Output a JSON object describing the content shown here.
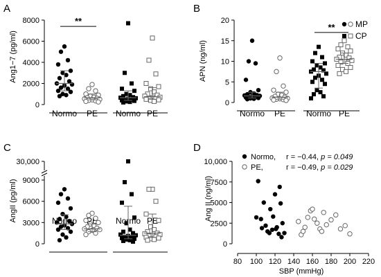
{
  "colors": {
    "ink": "#000000",
    "open_marker": "#666666",
    "summary_line": "#666666"
  },
  "panel_letters": [
    "A",
    "B",
    "C",
    "D"
  ],
  "legend_B": {
    "items": [
      {
        "label": "MP",
        "markers": [
          "filled-circle",
          "open-circle"
        ]
      },
      {
        "label": "CP",
        "markers": [
          "filled-square",
          "open-square"
        ]
      }
    ]
  },
  "legend_D": {
    "items": [
      {
        "label": "Normo,",
        "stat_r": "r = −0.44,",
        "stat_p_name": "p",
        "stat_p_value": "= 0.049",
        "marker": "filled-circle"
      },
      {
        "label": "PE,",
        "stat_r": "r = −0.49,",
        "stat_p_name": "p",
        "stat_p_value": "= 0.029",
        "marker": "open-circle"
      }
    ]
  },
  "chart_data": [
    {
      "panel": "A",
      "type": "scatter",
      "ylabel": "Ang1−7 (pg/ml)",
      "ylim": [
        0,
        8000
      ],
      "yticks": [
        0,
        2000,
        4000,
        6000,
        8000
      ],
      "yticklabels": [
        "0",
        "2000",
        "4000",
        "6000",
        "8000"
      ],
      "categories": [
        "Normo",
        "PE",
        "Normo",
        "PE"
      ],
      "groups": [
        {
          "marker": "filled-circle",
          "values": [
            5500,
            5000,
            4200,
            3800,
            3200,
            3000,
            2800,
            2500,
            2200,
            2000,
            1900,
            1800,
            1600,
            1500,
            1300,
            1200,
            1000,
            900,
            800
          ],
          "median": 2000,
          "q1": 1300,
          "q3": 3200
        },
        {
          "marker": "open-circle",
          "values": [
            1900,
            1500,
            1300,
            1000,
            900,
            800,
            700,
            650,
            600,
            550,
            500,
            450,
            400,
            350,
            300,
            250
          ],
          "median": 650,
          "q1": 450,
          "q3": 1000
        },
        {
          "marker": "filled-square",
          "values": [
            7700,
            3000,
            2000,
            1500,
            1300,
            1000,
            900,
            800,
            700,
            650,
            600,
            550,
            500,
            450,
            400,
            350,
            300,
            250,
            200
          ],
          "median": 650,
          "q1": 400,
          "q3": 1300
        },
        {
          "marker": "open-square",
          "values": [
            6300,
            4200,
            2900,
            2000,
            1700,
            1500,
            1200,
            1000,
            900,
            800,
            700,
            650,
            600,
            550,
            500,
            450,
            400,
            300
          ],
          "median": 750,
          "q1": 500,
          "q3": 1600
        }
      ],
      "significance": [
        {
          "between": [
            0,
            1
          ],
          "label": "**",
          "y": 7400
        }
      ]
    },
    {
      "panel": "B",
      "type": "scatter",
      "ylabel": "APN (ng/ml)",
      "ylim": [
        0,
        20
      ],
      "yticks": [
        0,
        5,
        10,
        15,
        20
      ],
      "yticklabels": [
        "0",
        "5",
        "10",
        "15",
        "20"
      ],
      "categories": [
        "Normo",
        "PE",
        "Normo",
        "PE"
      ],
      "groups": [
        {
          "marker": "filled-circle",
          "values": [
            15,
            10,
            9.5,
            5.5,
            3,
            2.5,
            2.2,
            2,
            1.8,
            1.7,
            1.6,
            1.5,
            1.4,
            1.3,
            1.2,
            1.1,
            1,
            0.9,
            0.8
          ],
          "median": 1.6,
          "q1": 1.1,
          "q3": 2.5
        },
        {
          "marker": "open-circle",
          "values": [
            10.8,
            7.5,
            4,
            3,
            2.5,
            2,
            1.8,
            1.5,
            1.3,
            1.1,
            1,
            0.9,
            0.8,
            0.7,
            0.6,
            0.5
          ],
          "median": 1.3,
          "q1": 0.8,
          "q3": 2.5
        },
        {
          "marker": "filled-square",
          "values": [
            13.5,
            12,
            11,
            10,
            9.5,
            9,
            8.5,
            8,
            7.8,
            7.5,
            7,
            6.5,
            6,
            5.5,
            5,
            4.5,
            3,
            2.5,
            2,
            1.5,
            1
          ],
          "median": 7.5,
          "q1": 3.5,
          "q3": 9.5
        },
        {
          "marker": "open-square",
          "values": [
            15,
            14,
            13.5,
            13,
            12.5,
            12,
            11.5,
            11,
            10.8,
            10.5,
            10.2,
            10,
            9.8,
            9.5,
            9,
            8.5,
            8,
            7.5,
            7
          ],
          "median": 10.5,
          "q1": 9.5,
          "q3": 12
        }
      ],
      "significance": [
        {
          "between": [
            2,
            3
          ],
          "label": "**",
          "y": 17
        }
      ]
    },
    {
      "panel": "C",
      "type": "scatter",
      "ylabel": "AngII (pg/ml)",
      "ylim": [
        0,
        9000
      ],
      "axis_break": {
        "below": 9000,
        "upper_value": 30000,
        "upper_label": "30,000"
      },
      "yticks": [
        0,
        3000,
        6000,
        9000
      ],
      "yticklabels": [
        "0",
        "3000",
        "6000",
        "9000"
      ],
      "categories": [
        "Normo",
        "PE",
        "Normo",
        "PE"
      ],
      "groups": [
        {
          "marker": "filled-circle",
          "values": [
            7700,
            7000,
            6400,
            5800,
            5000,
            4200,
            3800,
            3500,
            3200,
            3000,
            2800,
            2600,
            2400,
            2200,
            2000,
            1700,
            1300,
            900,
            500
          ],
          "median": 2800,
          "q1": 2000,
          "q3": 4100
        },
        {
          "marker": "open-circle",
          "values": [
            4300,
            4000,
            3600,
            3300,
            3000,
            2800,
            2600,
            2400,
            2200,
            2100,
            2000,
            1900,
            1700,
            1500,
            1300
          ],
          "median": 2100,
          "q1": 1700,
          "q3": 2800
        },
        {
          "marker": "filled-square",
          "values": [
            30000,
            8700,
            7000,
            5800,
            3700,
            2900,
            2000,
            1700,
            1500,
            1300,
            1200,
            1100,
            1000,
            900,
            800,
            700,
            600,
            500,
            400,
            300
          ],
          "median": 1200,
          "q1": 700,
          "q3": 5300
        },
        {
          "marker": "open-square",
          "values": [
            7700,
            7700,
            6000,
            4200,
            3300,
            2400,
            2000,
            1700,
            1500,
            1400,
            1300,
            1200,
            1100,
            1000,
            900,
            800,
            700,
            600,
            500
          ],
          "median": 1500,
          "q1": 900,
          "q3": 4200
        }
      ]
    },
    {
      "panel": "D",
      "type": "scatter",
      "xlabel": "SBP (mmHg)",
      "ylabel": "Ang II (ng/ml)",
      "xlim": [
        80,
        220
      ],
      "ylim": [
        0,
        10000
      ],
      "xticks": [
        80,
        100,
        120,
        140,
        160,
        180,
        200,
        220
      ],
      "xticklabels": [
        "80",
        "100",
        "120",
        "140",
        "160",
        "180",
        "200",
        "220"
      ],
      "yticks": [
        0,
        2500,
        5000,
        7500,
        10000
      ],
      "yticklabels": [
        "0",
        "2500",
        "5000",
        "7500",
        "10,000"
      ],
      "series": [
        {
          "marker": "filled-circle",
          "x": [
            102,
            108,
            105,
            115,
            110,
            118,
            120,
            125,
            122,
            126,
            112,
            100,
            117,
            121,
            124,
            128,
            130,
            106,
            114,
            127
          ],
          "y": [
            7600,
            5000,
            3000,
            4200,
            2200,
            3300,
            6000,
            6900,
            2000,
            4900,
            1500,
            3200,
            1700,
            1800,
            1200,
            2500,
            1300,
            1900,
            1300,
            800
          ]
        },
        {
          "marker": "open-circle",
          "x": [
            145,
            148,
            150,
            152,
            155,
            158,
            160,
            162,
            165,
            168,
            170,
            172,
            175,
            180,
            185,
            190,
            195,
            200
          ],
          "y": [
            2700,
            1100,
            1500,
            2000,
            3200,
            4000,
            4200,
            3000,
            2500,
            1800,
            1500,
            3800,
            2300,
            2900,
            3500,
            1800,
            2200,
            1200
          ]
        }
      ]
    }
  ]
}
